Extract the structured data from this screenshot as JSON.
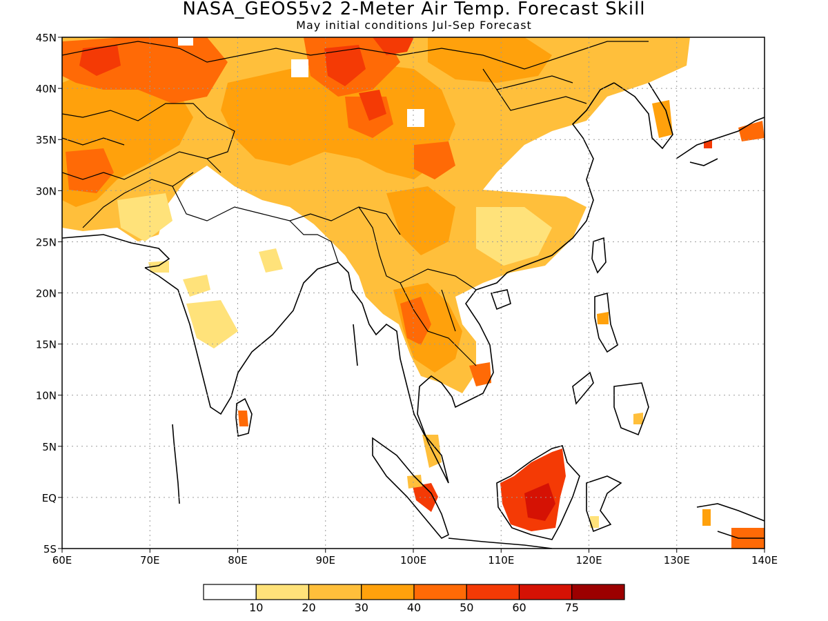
{
  "title": "NASA_GEOS5v2 2-Meter Air Temp. Forecast Skill",
  "subtitle": "May initial conditions  Jul-Sep Forecast",
  "map": {
    "lon_range": [
      60,
      140
    ],
    "lat_range": [
      -5,
      45
    ],
    "grid": true,
    "lon_ticks": [
      {
        "v": 60,
        "label": "60E"
      },
      {
        "v": 70,
        "label": "70E"
      },
      {
        "v": 80,
        "label": "80E"
      },
      {
        "v": 90,
        "label": "90E"
      },
      {
        "v": 100,
        "label": "100E"
      },
      {
        "v": 110,
        "label": "110E"
      },
      {
        "v": 120,
        "label": "120E"
      },
      {
        "v": 130,
        "label": "130E"
      },
      {
        "v": 140,
        "label": "140E"
      }
    ],
    "lat_ticks": [
      {
        "v": 45,
        "label": "45N"
      },
      {
        "v": 40,
        "label": "40N"
      },
      {
        "v": 35,
        "label": "35N"
      },
      {
        "v": 30,
        "label": "30N"
      },
      {
        "v": 25,
        "label": "25N"
      },
      {
        "v": 20,
        "label": "20N"
      },
      {
        "v": 15,
        "label": "15N"
      },
      {
        "v": 10,
        "label": "10N"
      },
      {
        "v": 5,
        "label": "5N"
      },
      {
        "v": 0,
        "label": "EQ"
      },
      {
        "v": -5,
        "label": "5S"
      }
    ]
  },
  "colorbar": {
    "colors": [
      "#ffffff",
      "#ffe27a",
      "#ffbf3b",
      "#ffa10c",
      "#ff6a06",
      "#f43a05",
      "#d51204",
      "#9c0000"
    ],
    "labels": [
      "10",
      "20",
      "30",
      "40",
      "50",
      "60",
      "75"
    ]
  }
}
